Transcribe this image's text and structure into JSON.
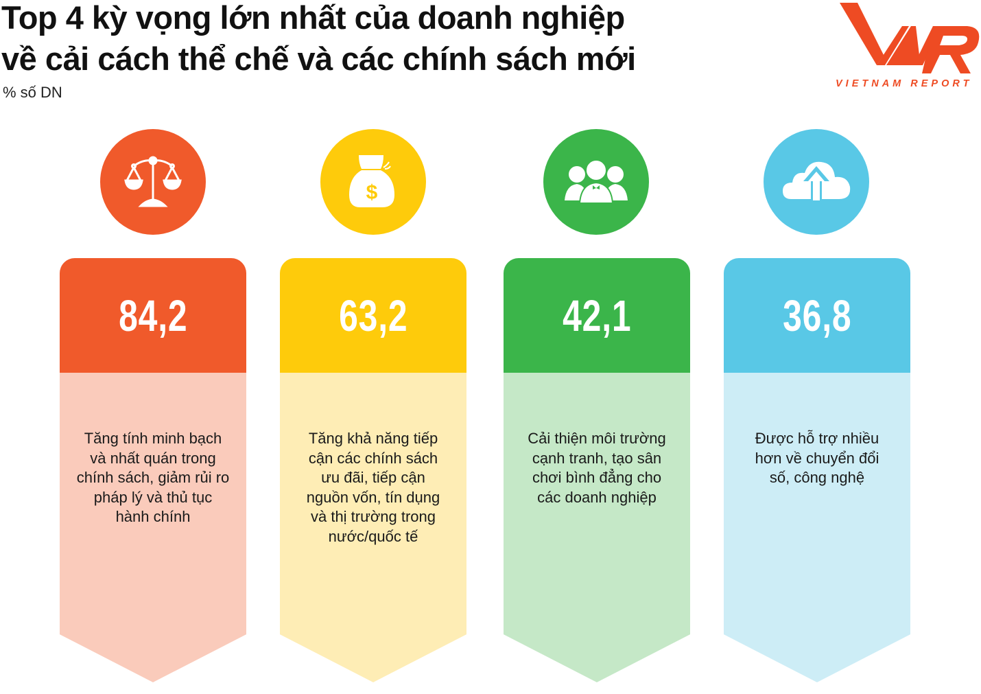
{
  "header": {
    "title_line1": "Top 4 kỳ vọng lớn nhất của doanh nghiệp",
    "title_line2": "về cải cách thể chế và các chính sách mới",
    "subtitle": "% số DN"
  },
  "logo": {
    "text": "VNR",
    "tagline": "VIETNAM REPORT",
    "color": "#EE4B23"
  },
  "chart_data": {
    "type": "bar",
    "title": "Top 4 kỳ vọng lớn nhất của doanh nghiệp về cải cách thể chế và các chính sách mới",
    "ylabel": "% số DN",
    "categories": [
      "Tăng tính minh bạch và nhất quán trong chính sách, giảm rủi ro pháp lý và thủ tục hành chính",
      "Tăng khả năng tiếp cận các chính sách ưu đãi, tiếp cận nguồn vốn, tín dụng và thị trường trong nước/quốc tế",
      "Cải thiện môi trường cạnh tranh, tạo sân chơi bình đẳng cho các doanh nghiệp",
      "Được hỗ trợ nhiều hơn về chuyển đổi số, công nghệ"
    ],
    "values": [
      84.2,
      63.2,
      42.1,
      36.8
    ],
    "value_labels": [
      "84,2",
      "63,2",
      "42,1",
      "36,8"
    ],
    "icons": [
      "scale-icon",
      "money-bag-icon",
      "people-icon",
      "cloud-upload-icon"
    ],
    "colors": [
      "#F05A2B",
      "#FECB0B",
      "#3BB54A",
      "#59C8E6"
    ],
    "light_colors": [
      "#FACBBB",
      "#FEEDB5",
      "#C5E8C7",
      "#CDEDF6"
    ]
  }
}
